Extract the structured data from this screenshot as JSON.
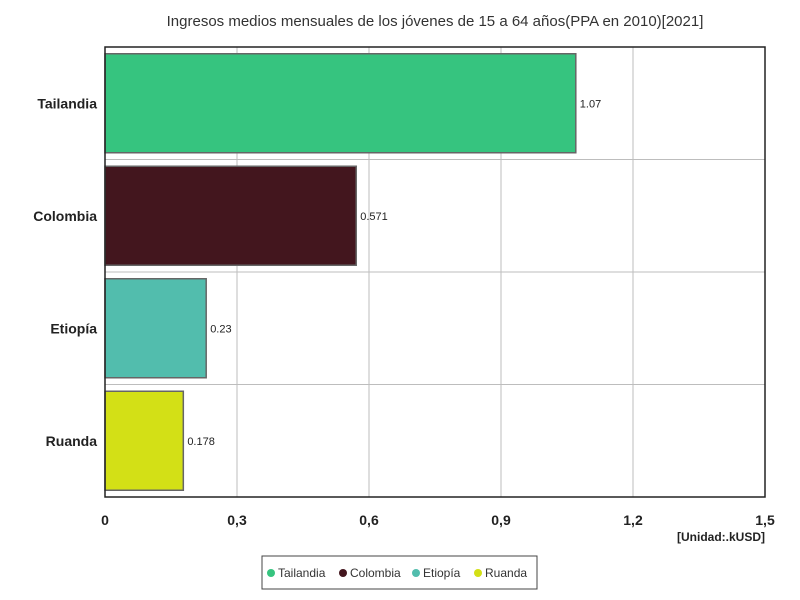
{
  "chart_data": {
    "type": "bar",
    "orientation": "horizontal",
    "title": "Ingresos medios mensuales de los jóvenes de 15 a 64 años(PPA en 2010)[2021]",
    "unit": "[Unidad:.kUSD]",
    "categories": [
      "Tailandia",
      "Colombia",
      "Etiopía",
      "Ruanda"
    ],
    "values": [
      1.07,
      0.571,
      0.23,
      0.178
    ],
    "value_labels": [
      "1.07",
      "0.571",
      "0.23",
      "0.178"
    ],
    "colors": [
      "#36c47f",
      "#43161e",
      "#52bdad",
      "#d3e016"
    ],
    "xlim": [
      0,
      1.5
    ],
    "xticks": [
      0,
      0.3,
      0.6,
      0.9,
      1.2,
      1.5
    ],
    "xtick_labels": [
      "0",
      "0,3",
      "0,6",
      "0,9",
      "1,2",
      "1,5"
    ],
    "grid": true,
    "legend": {
      "position": "bottom",
      "entries": [
        "Tailandia",
        "Colombia",
        "Etiopía",
        "Ruanda"
      ]
    }
  }
}
